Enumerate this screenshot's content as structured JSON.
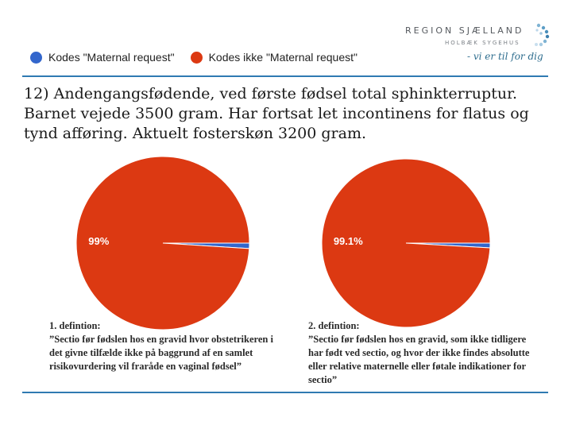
{
  "logo": {
    "name": "REGION SJÆLLAND",
    "sub": "HOLBÆK SYGEHUS",
    "tagline": "- vi er til for dig"
  },
  "legend": [
    {
      "label": "Kodes \"Maternal request\"",
      "color": "#3366cc"
    },
    {
      "label": "Kodes ikke \"Maternal request\"",
      "color": "#dc3912"
    }
  ],
  "heading": "12) Andengangsfødende, ved første fødsel total sphinkterruptur. Barnet vejede 3500 gram. Har fortsat let incontinens for flatus og tynd afføring. Aktuelt fosterskøn 3200 gram.",
  "definitions": [
    {
      "title": "1. defintion:",
      "text": "”Sectio før fødslen hos en gravid hvor obstetrikeren i det givne tilfælde ikke på baggrund af en samlet risikovurdering vil fraråde en vaginal fødsel”"
    },
    {
      "title": "2. defintion:",
      "text": "”Sectio før fødslen hos en gravid, som ikke tidligere har født ved sectio, og hvor der ikke findes absolutte eller relative maternelle eller føtale indikationer for sectio”"
    }
  ],
  "chart_data": [
    {
      "type": "pie",
      "slices": [
        {
          "label": "Kodes \"Maternal request\"",
          "value": 1.0,
          "color": "#3366cc"
        },
        {
          "label": "Kodes ikke \"Maternal request\"",
          "value": 99.0,
          "color": "#dc3912",
          "data_label": "99%"
        }
      ]
    },
    {
      "type": "pie",
      "slices": [
        {
          "label": "Kodes \"Maternal request\"",
          "value": 0.9,
          "color": "#3366cc"
        },
        {
          "label": "Kodes ikke \"Maternal request\"",
          "value": 99.1,
          "color": "#dc3912",
          "data_label": "99.1%"
        }
      ]
    }
  ]
}
